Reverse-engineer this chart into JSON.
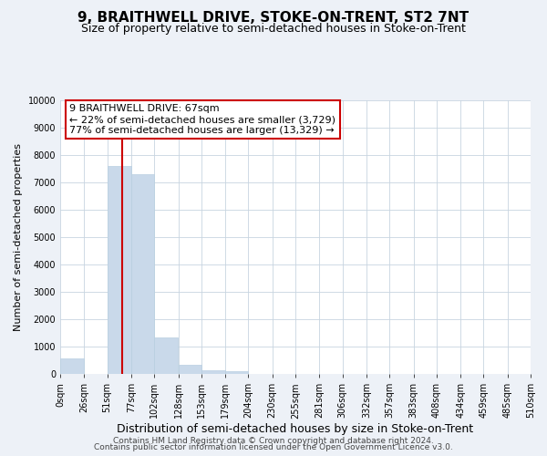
{
  "title": "9, BRAITHWELL DRIVE, STOKE-ON-TRENT, ST2 7NT",
  "subtitle": "Size of property relative to semi-detached houses in Stoke-on-Trent",
  "bar_edges": [
    0,
    26,
    51,
    77,
    102,
    128,
    153,
    179,
    204,
    230,
    255,
    281,
    306,
    332,
    357,
    383,
    408,
    434,
    459,
    485,
    510
  ],
  "bar_heights": [
    560,
    0,
    7600,
    7300,
    1320,
    350,
    130,
    100,
    0,
    0,
    0,
    0,
    0,
    0,
    0,
    0,
    0,
    0,
    0,
    0
  ],
  "bar_color": "#c9d9ea",
  "bar_edge_color": "#b8cfe0",
  "vline_x": 67,
  "vline_color": "#cc0000",
  "ann_line1": "9 BRAITHWELL DRIVE: 67sqm",
  "ann_line2": "← 22% of semi-detached houses are smaller (3,729)",
  "ann_line3": "77% of semi-detached houses are larger (13,329) →",
  "annotation_box_facecolor": "white",
  "annotation_box_edgecolor": "#cc0000",
  "xlabel": "Distribution of semi-detached houses by size in Stoke-on-Trent",
  "ylabel": "Number of semi-detached properties",
  "xlim": [
    0,
    510
  ],
  "ylim": [
    0,
    10000
  ],
  "yticks": [
    0,
    1000,
    2000,
    3000,
    4000,
    5000,
    6000,
    7000,
    8000,
    9000,
    10000
  ],
  "xtick_labels": [
    "0sqm",
    "26sqm",
    "51sqm",
    "77sqm",
    "102sqm",
    "128sqm",
    "153sqm",
    "179sqm",
    "204sqm",
    "230sqm",
    "255sqm",
    "281sqm",
    "306sqm",
    "332sqm",
    "357sqm",
    "383sqm",
    "408sqm",
    "434sqm",
    "459sqm",
    "485sqm",
    "510sqm"
  ],
  "xtick_positions": [
    0,
    26,
    51,
    77,
    102,
    128,
    153,
    179,
    204,
    230,
    255,
    281,
    306,
    332,
    357,
    383,
    408,
    434,
    459,
    485,
    510
  ],
  "footer_line1": "Contains HM Land Registry data © Crown copyright and database right 2024.",
  "footer_line2": "Contains public sector information licensed under the Open Government Licence v3.0.",
  "background_color": "#edf1f7",
  "plot_background_color": "#ffffff",
  "grid_color": "#c8d4e0",
  "title_fontsize": 11,
  "subtitle_fontsize": 9,
  "xlabel_fontsize": 9,
  "ylabel_fontsize": 8,
  "tick_fontsize": 7,
  "ann_fontsize": 8,
  "footer_fontsize": 6.5
}
